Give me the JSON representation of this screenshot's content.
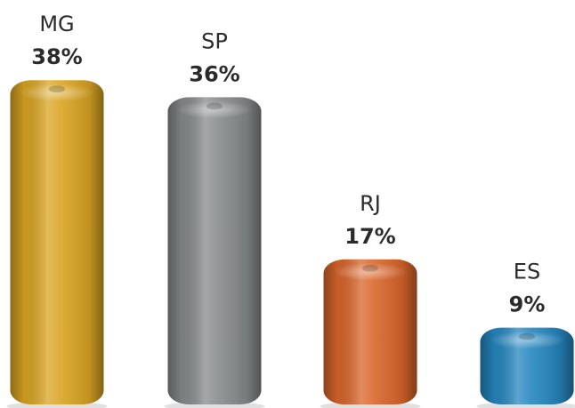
{
  "chart_data": {
    "type": "bar",
    "categories": [
      "MG",
      "SP",
      "RJ",
      "ES"
    ],
    "values": [
      38,
      36,
      17,
      9
    ],
    "value_labels": [
      "38%",
      "36%",
      "17%",
      "9%"
    ],
    "colors": [
      "#d9a421",
      "#878a8c",
      "#d9652a",
      "#2586bf"
    ],
    "ylim": [
      0,
      40
    ]
  }
}
